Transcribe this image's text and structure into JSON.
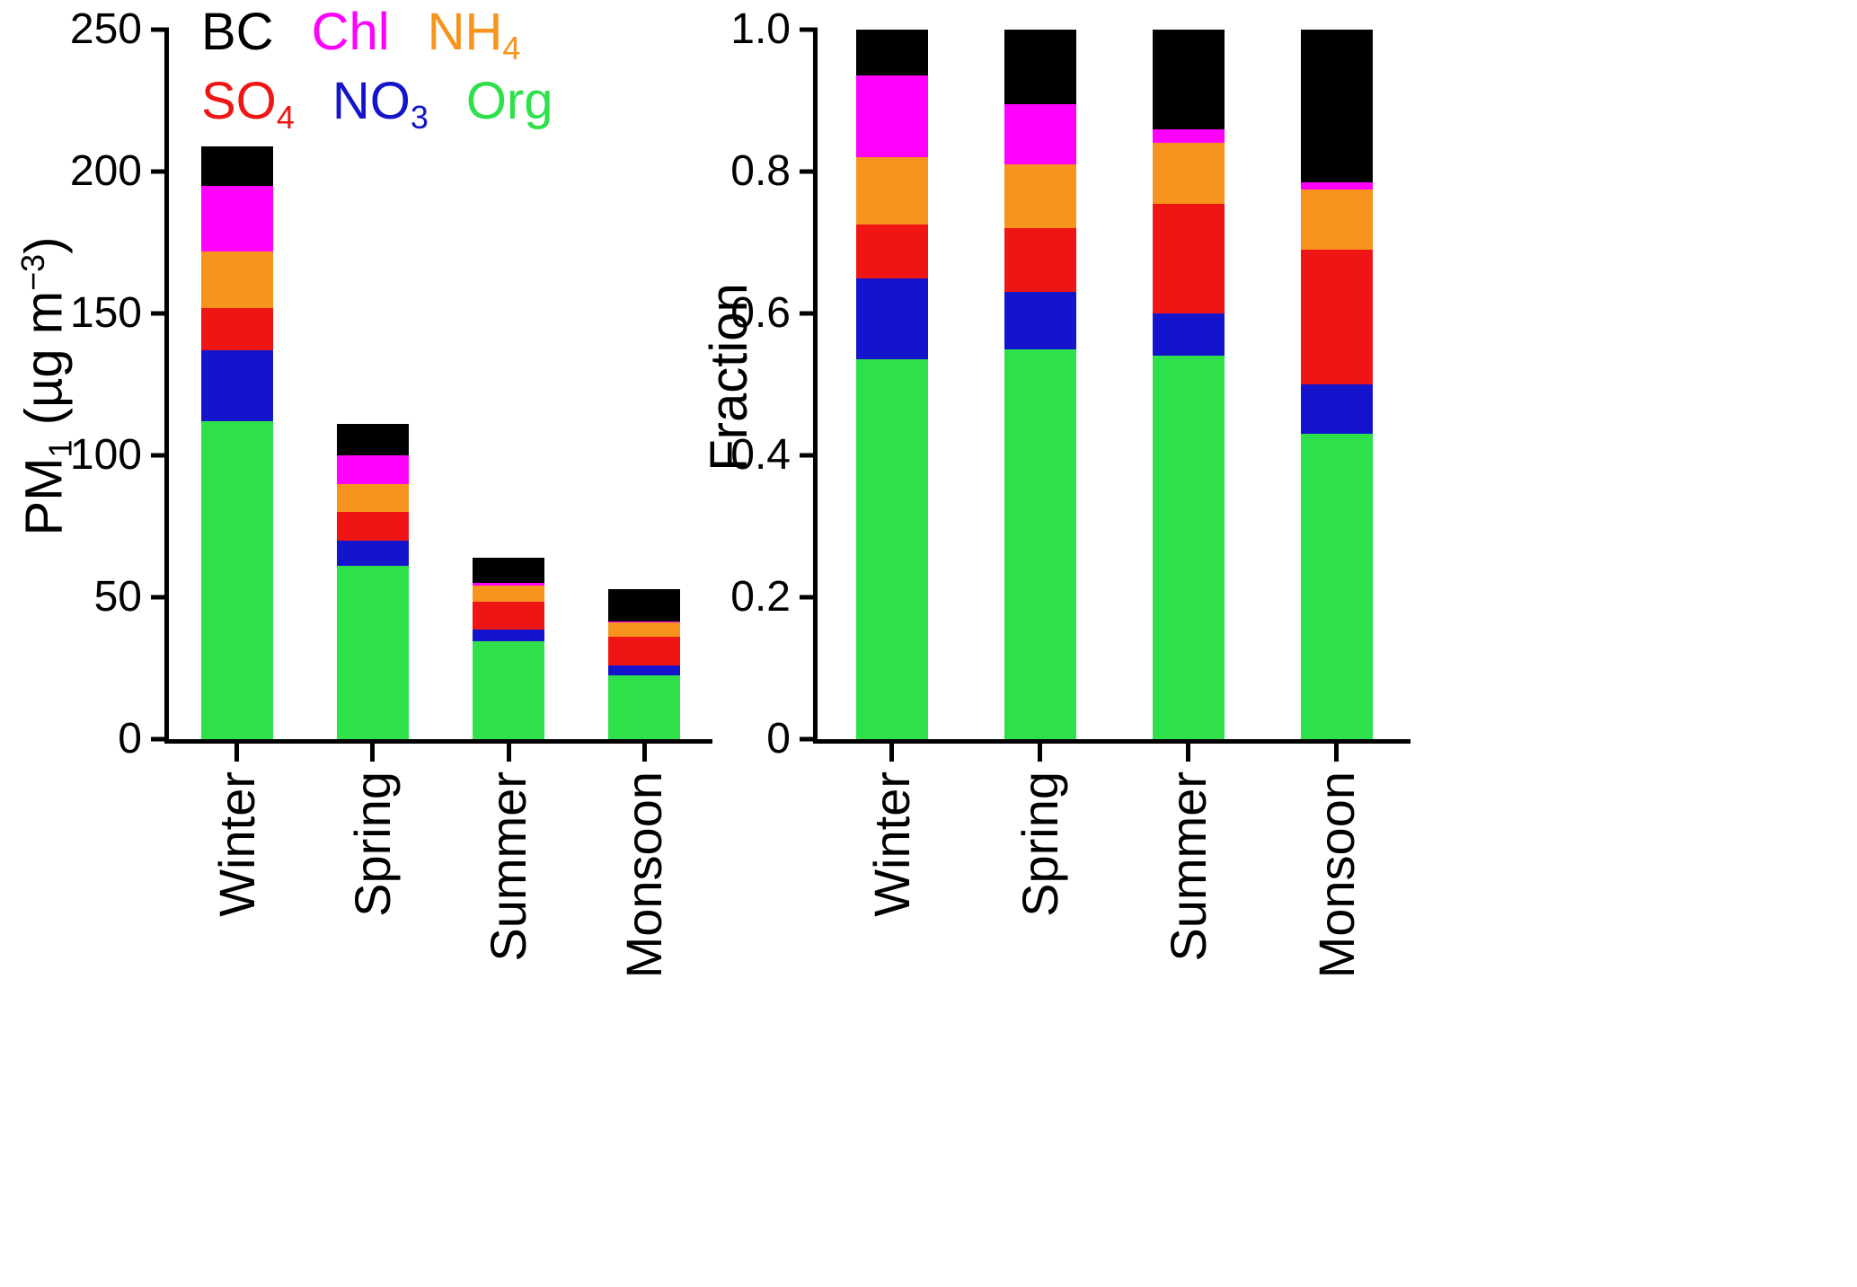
{
  "figure": {
    "background": "#ffffff"
  },
  "legend": {
    "rows": [
      [
        {
          "text": "BC",
          "sub": "",
          "color": "#000000"
        },
        {
          "text": "Chl",
          "sub": "",
          "color": "#FF00FF"
        },
        {
          "text": "NH",
          "sub": "4",
          "color": "#F7941D"
        }
      ],
      [
        {
          "text": "SO",
          "sub": "4",
          "color": "#F01515"
        },
        {
          "text": "NO",
          "sub": "3",
          "color": "#1414CC"
        },
        {
          "text": "Org",
          "sub": "",
          "color": "#2EE04A"
        }
      ]
    ]
  },
  "left_axis": {
    "label_main": "PM",
    "label_sub": "1",
    "label_mid": " (µg m",
    "label_sup": "−3",
    "label_end": ")"
  },
  "right_axis": {
    "label": "Fraction"
  },
  "chart_data": [
    {
      "type": "bar",
      "stacked": true,
      "panel": "left",
      "title": "",
      "ylabel": "PM1 (µg m−3)",
      "ylim": [
        0,
        250
      ],
      "yticks": [
        0,
        50,
        100,
        150,
        200,
        250
      ],
      "ytick_labels": [
        "0",
        "50",
        "100",
        "150",
        "200",
        "250"
      ],
      "categories": [
        "Winter",
        "Spring",
        "Summer",
        "Monsoon"
      ],
      "series": [
        {
          "name": "Org",
          "color": "#2EE04A",
          "values": [
            112,
            61,
            34.5,
            22.5
          ]
        },
        {
          "name": "NO3",
          "color": "#1414CC",
          "values": [
            25,
            9,
            4,
            3.5
          ]
        },
        {
          "name": "SO4",
          "color": "#F01515",
          "values": [
            15,
            10,
            10,
            10
          ]
        },
        {
          "name": "NH4",
          "color": "#F7941D",
          "values": [
            20,
            10,
            5.5,
            5
          ]
        },
        {
          "name": "Chl",
          "color": "#FF00FF",
          "values": [
            23,
            10,
            1,
            0.5
          ]
        },
        {
          "name": "BC",
          "color": "#000000",
          "values": [
            14,
            11,
            9,
            11.5
          ]
        }
      ],
      "totals": [
        209,
        111,
        64,
        53
      ],
      "grid": false,
      "legend_position": "top-left"
    },
    {
      "type": "bar",
      "stacked": true,
      "panel": "right",
      "title": "",
      "ylabel": "Fraction",
      "ylim": [
        0,
        1
      ],
      "yticks": [
        0,
        0.2,
        0.4,
        0.6,
        0.8,
        1.0
      ],
      "ytick_labels": [
        "0",
        "0.2",
        "0.4",
        "0.6",
        "0.8",
        "1.0"
      ],
      "categories": [
        "Winter",
        "Spring",
        "Summer",
        "Monsoon"
      ],
      "series": [
        {
          "name": "Org",
          "color": "#2EE04A",
          "values": [
            0.535,
            0.55,
            0.54,
            0.43
          ]
        },
        {
          "name": "NO3",
          "color": "#1414CC",
          "values": [
            0.115,
            0.08,
            0.06,
            0.07
          ]
        },
        {
          "name": "SO4",
          "color": "#F01515",
          "values": [
            0.075,
            0.09,
            0.155,
            0.19
          ]
        },
        {
          "name": "NH4",
          "color": "#F7941D",
          "values": [
            0.095,
            0.09,
            0.085,
            0.085
          ]
        },
        {
          "name": "Chl",
          "color": "#FF00FF",
          "values": [
            0.115,
            0.085,
            0.02,
            0.01
          ]
        },
        {
          "name": "BC",
          "color": "#000000",
          "values": [
            0.065,
            0.105,
            0.14,
            0.215
          ]
        }
      ],
      "grid": false,
      "legend_position": "none"
    }
  ]
}
